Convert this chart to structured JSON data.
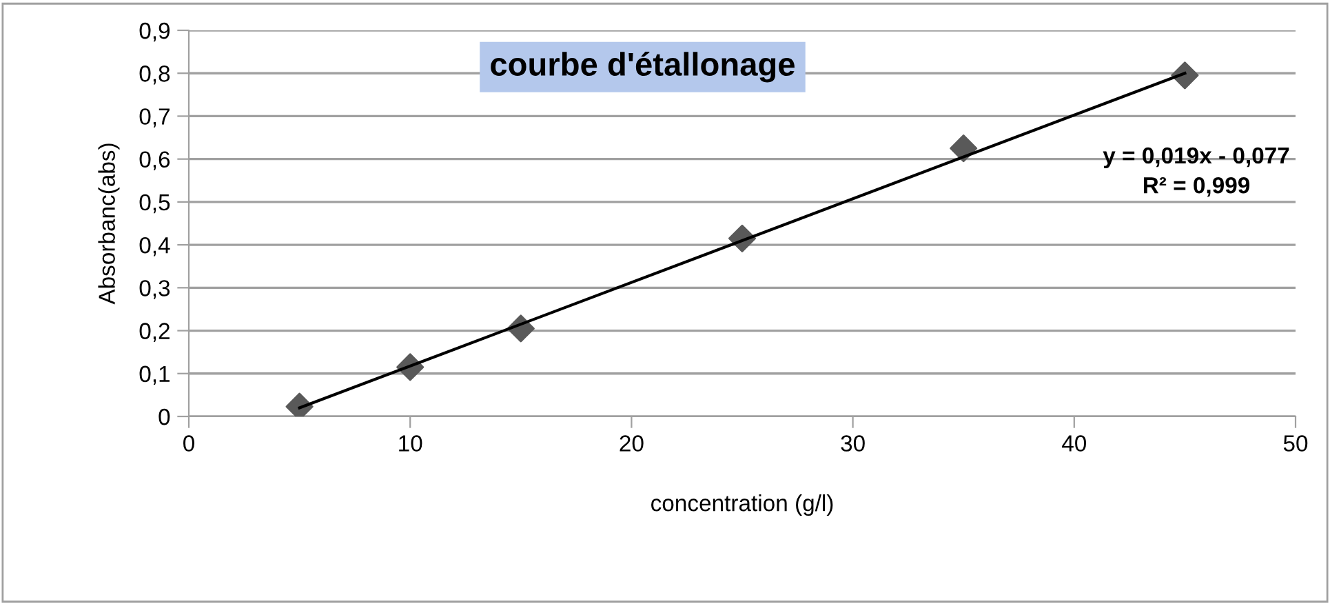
{
  "chart_data": {
    "type": "scatter",
    "title": "courbe d'étallonage",
    "xlabel": "concentration (g/l)",
    "ylabel": "Absorbanc(abs)",
    "x": [
      5,
      10,
      15,
      25,
      35,
      45
    ],
    "series": [
      {
        "color": "#595959",
        "marker": "diamond",
        "values": [
          0.023,
          0.115,
          0.205,
          0.415,
          0.625,
          0.795
        ]
      },
      {
        "type": "line",
        "color": "#000000",
        "x": [
          5,
          45
        ],
        "values": [
          0.02,
          0.8
        ]
      }
    ],
    "annotations": [
      "y = 0,019x - 0,077",
      "R² = 0,999"
    ],
    "xlim": [
      0,
      50
    ],
    "xticks": [
      0,
      10,
      20,
      30,
      40,
      50
    ],
    "ylim": [
      0,
      0.9
    ],
    "yticks": [
      0,
      {
        "value": 0.1,
        "label": "0,1"
      },
      {
        "value": 0.2,
        "label": "0,2"
      },
      {
        "value": 0.3,
        "label": "0,3"
      },
      {
        "value": 0.4,
        "label": "0,4"
      },
      {
        "value": 0.5,
        "label": "0,5"
      },
      {
        "value": 0.6,
        "label": "0,6"
      },
      {
        "value": 0.7,
        "label": "0,7"
      },
      {
        "value": 0.8,
        "label": "0,8"
      },
      {
        "value": 0.9,
        "label": "0,9"
      }
    ],
    "grid": "y",
    "legend": false
  }
}
